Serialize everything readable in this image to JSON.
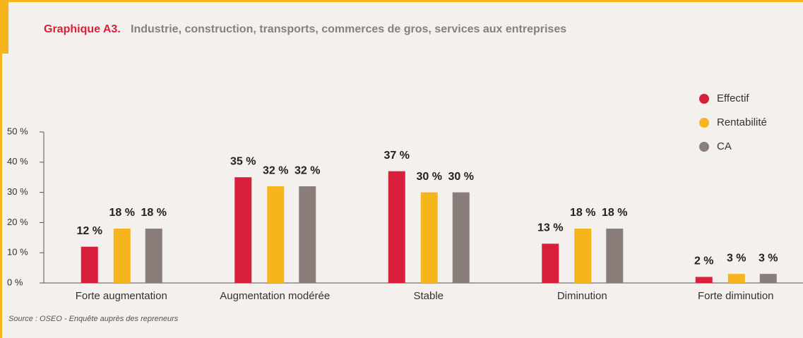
{
  "chart_data": {
    "type": "bar",
    "title_prefix": "Graphique A3.",
    "title": "Industrie, construction, transports, commerces de gros, services aux entreprises",
    "categories": [
      "Forte augmentation",
      "Augmentation modérée",
      "Stable",
      "Diminution",
      "Forte diminution"
    ],
    "series": [
      {
        "name": "Effectif",
        "color": "#d91f3c",
        "values": [
          12,
          35,
          37,
          13,
          2
        ],
        "value_labels": [
          "12 %",
          "35 %",
          "37 %",
          "13 %",
          "2 %"
        ]
      },
      {
        "name": "Rentabilité",
        "color": "#f6b51c",
        "values": [
          18,
          32,
          30,
          18,
          3
        ],
        "value_labels": [
          "18 %",
          "32 %",
          "30 %",
          "18 %",
          "3 %"
        ]
      },
      {
        "name": "CA",
        "color": "#8a7e7a",
        "values": [
          18,
          32,
          30,
          18,
          3
        ],
        "value_labels": [
          "18 %",
          "32 %",
          "30 %",
          "18 %",
          "3 %"
        ]
      }
    ],
    "ylim": [
      0,
      50
    ],
    "yticks": [
      {
        "value": 0,
        "label": "0 %"
      },
      {
        "value": 10,
        "label": "10 %"
      },
      {
        "value": 20,
        "label": "20 %"
      },
      {
        "value": 30,
        "label": "30 %"
      },
      {
        "value": 40,
        "label": "40 %"
      },
      {
        "value": 50,
        "label": "50 %"
      }
    ],
    "source": "Source : OSEO - Enquête auprès des repreneurs"
  }
}
